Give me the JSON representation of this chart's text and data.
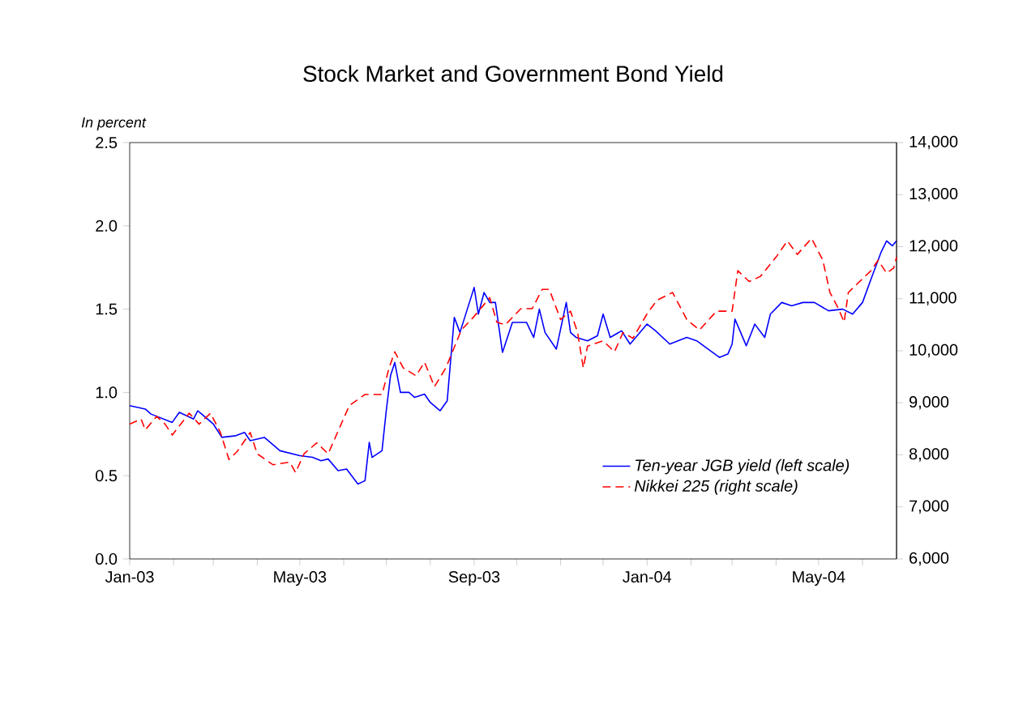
{
  "chart_data": {
    "type": "line",
    "title": "Stock Market and Government Bond Yield",
    "ylabel": "In percent",
    "xlim": [
      "2003-01-01",
      "2004-06-25"
    ],
    "xticks": [
      {
        "value": "2003-01-01",
        "label": "Jan-03"
      },
      {
        "value": "2003-02-01",
        "label": null
      },
      {
        "value": "2003-03-01",
        "label": null
      },
      {
        "value": "2003-04-01",
        "label": null
      },
      {
        "value": "2003-05-01",
        "label": "May-03"
      },
      {
        "value": "2003-06-01",
        "label": null
      },
      {
        "value": "2003-07-01",
        "label": null
      },
      {
        "value": "2003-08-01",
        "label": null
      },
      {
        "value": "2003-09-01",
        "label": "Sep-03"
      },
      {
        "value": "2003-10-01",
        "label": null
      },
      {
        "value": "2003-11-01",
        "label": null
      },
      {
        "value": "2003-12-01",
        "label": null
      },
      {
        "value": "2004-01-01",
        "label": "Jan-04"
      },
      {
        "value": "2004-02-01",
        "label": null
      },
      {
        "value": "2004-03-01",
        "label": null
      },
      {
        "value": "2004-04-01",
        "label": null
      },
      {
        "value": "2004-05-01",
        "label": "May-04"
      },
      {
        "value": "2004-06-01",
        "label": null
      }
    ],
    "ylim": [
      0,
      2.5
    ],
    "yticks": [
      {
        "value": 0,
        "label": "0.0"
      },
      {
        "value": 0.5,
        "label": "0.5"
      },
      {
        "value": 1,
        "label": "1.0"
      },
      {
        "value": 1.5,
        "label": "1.5"
      },
      {
        "value": 2,
        "label": "2.0"
      },
      {
        "value": 2.5,
        "label": "2.5"
      }
    ],
    "y2lim": [
      6000,
      14000
    ],
    "y2ticks": [
      {
        "value": 6000,
        "label": "6,000"
      },
      {
        "value": 7000,
        "label": "7,000"
      },
      {
        "value": 8000,
        "label": "8,000"
      },
      {
        "value": 9000,
        "label": "9,000"
      },
      {
        "value": 10000,
        "label": "10,000"
      },
      {
        "value": 11000,
        "label": "11,000"
      },
      {
        "value": 12000,
        "label": "12,000"
      },
      {
        "value": 13000,
        "label": "13,000"
      },
      {
        "value": 14000,
        "label": "14,000"
      }
    ],
    "legend": "bottom right",
    "grid": false,
    "marker": "none",
    "series": [
      {
        "name": "Ten-year JGB yield (left scale)",
        "color": "#0000ff",
        "line_style": "solid",
        "x": [
          "2003-01-01",
          "2003-01-12",
          "2003-01-16",
          "2003-01-31",
          "2003-02-05",
          "2003-02-15",
          "2003-02-18",
          "2003-03-01",
          "2003-03-07",
          "2003-03-17",
          "2003-03-23",
          "2003-03-27",
          "2003-04-06",
          "2003-04-17",
          "2003-05-01",
          "2003-05-10",
          "2003-05-16",
          "2003-05-21",
          "2003-05-28",
          "2003-06-03",
          "2003-06-11",
          "2003-06-16",
          "2003-06-19",
          "2003-06-21",
          "2003-06-28",
          "2003-07-01",
          "2003-07-04",
          "2003-07-07",
          "2003-07-11",
          "2003-07-17",
          "2003-07-21",
          "2003-07-28",
          "2003-08-01",
          "2003-08-08",
          "2003-08-13",
          "2003-08-18",
          "2003-08-22",
          "2003-09-01",
          "2003-09-04",
          "2003-09-08",
          "2003-09-12",
          "2003-09-16",
          "2003-09-21",
          "2003-09-28",
          "2003-10-08",
          "2003-10-13",
          "2003-10-17",
          "2003-10-21",
          "2003-10-29",
          "2003-11-05",
          "2003-11-08",
          "2003-11-12",
          "2003-11-20",
          "2003-11-27",
          "2003-12-01",
          "2003-12-06",
          "2003-12-14",
          "2003-12-20",
          "2004-01-01",
          "2004-01-07",
          "2004-01-17",
          "2004-01-29",
          "2004-02-05",
          "2004-02-13",
          "2004-02-21",
          "2004-02-27",
          "2004-03-01",
          "2004-03-03",
          "2004-03-11",
          "2004-03-17",
          "2004-03-24",
          "2004-03-28",
          "2004-04-05",
          "2004-04-12",
          "2004-04-20",
          "2004-04-28",
          "2004-05-08",
          "2004-05-18",
          "2004-05-25",
          "2004-06-01",
          "2004-06-07",
          "2004-06-14",
          "2004-06-18",
          "2004-06-22",
          "2004-06-25"
        ],
        "values": [
          0.92,
          0.9,
          0.87,
          0.82,
          0.88,
          0.84,
          0.89,
          0.81,
          0.73,
          0.74,
          0.76,
          0.71,
          0.73,
          0.65,
          0.62,
          0.61,
          0.59,
          0.6,
          0.53,
          0.54,
          0.45,
          0.47,
          0.7,
          0.61,
          0.65,
          0.89,
          1.1,
          1.18,
          1.0,
          1.0,
          0.97,
          0.99,
          0.94,
          0.89,
          0.95,
          1.45,
          1.36,
          1.63,
          1.47,
          1.6,
          1.54,
          1.54,
          1.24,
          1.42,
          1.42,
          1.33,
          1.5,
          1.36,
          1.26,
          1.54,
          1.36,
          1.33,
          1.31,
          1.34,
          1.47,
          1.33,
          1.37,
          1.29,
          1.41,
          1.37,
          1.29,
          1.33,
          1.31,
          1.26,
          1.21,
          1.23,
          1.29,
          1.44,
          1.28,
          1.41,
          1.33,
          1.47,
          1.54,
          1.52,
          1.54,
          1.54,
          1.49,
          1.5,
          1.47,
          1.54,
          1.68,
          1.84,
          1.91,
          1.88,
          1.91
        ]
      },
      {
        "name": "Nikkei 225 (right scale)",
        "color": "#ff0000",
        "line_style": "dashed",
        "axis": "y2",
        "x": [
          "2003-01-01",
          "2003-01-09",
          "2003-01-12",
          "2003-01-20",
          "2003-01-26",
          "2003-01-31",
          "2003-02-12",
          "2003-02-19",
          "2003-02-27",
          "2003-03-06",
          "2003-03-12",
          "2003-03-18",
          "2003-03-27",
          "2003-04-01",
          "2003-04-12",
          "2003-04-24",
          "2003-04-28",
          "2003-05-04",
          "2003-05-13",
          "2003-05-21",
          "2003-05-26",
          "2003-06-05",
          "2003-06-16",
          "2003-06-28",
          "2003-07-03",
          "2003-07-07",
          "2003-07-13",
          "2003-07-22",
          "2003-07-28",
          "2003-08-04",
          "2003-08-12",
          "2003-08-23",
          "2003-09-01",
          "2003-09-12",
          "2003-09-17",
          "2003-09-23",
          "2003-10-04",
          "2003-10-12",
          "2003-10-19",
          "2003-10-24",
          "2003-11-01",
          "2003-11-08",
          "2003-11-13",
          "2003-11-17",
          "2003-11-20",
          "2003-12-01",
          "2003-12-09",
          "2003-12-15",
          "2003-12-22",
          "2004-01-01",
          "2004-01-08",
          "2004-01-19",
          "2004-01-29",
          "2004-02-07",
          "2004-02-19",
          "2004-03-01",
          "2004-03-05",
          "2004-03-13",
          "2004-03-21",
          "2004-04-01",
          "2004-04-09",
          "2004-04-16",
          "2004-04-26",
          "2004-05-04",
          "2004-05-09",
          "2004-05-15",
          "2004-05-19",
          "2004-05-22",
          "2004-05-30",
          "2004-06-07",
          "2004-06-12",
          "2004-06-18",
          "2004-06-23",
          "2004-06-25"
        ],
        "values": [
          8590,
          8690,
          8480,
          8740,
          8590,
          8380,
          8800,
          8590,
          8800,
          8430,
          7910,
          8070,
          8430,
          8020,
          7810,
          7860,
          7660,
          8020,
          8230,
          8020,
          8330,
          8950,
          9160,
          9160,
          9670,
          9980,
          9670,
          9520,
          9780,
          9310,
          9670,
          10400,
          10660,
          11020,
          10550,
          10500,
          10810,
          10810,
          11180,
          11180,
          10600,
          10760,
          10350,
          9670,
          10090,
          10190,
          9980,
          10350,
          10240,
          10710,
          10970,
          11120,
          10600,
          10400,
          10760,
          10760,
          11540,
          11330,
          11430,
          11800,
          12110,
          11850,
          12160,
          11740,
          11120,
          10810,
          10550,
          11120,
          11330,
          11540,
          11740,
          11490,
          11590,
          11800
        ]
      }
    ]
  }
}
